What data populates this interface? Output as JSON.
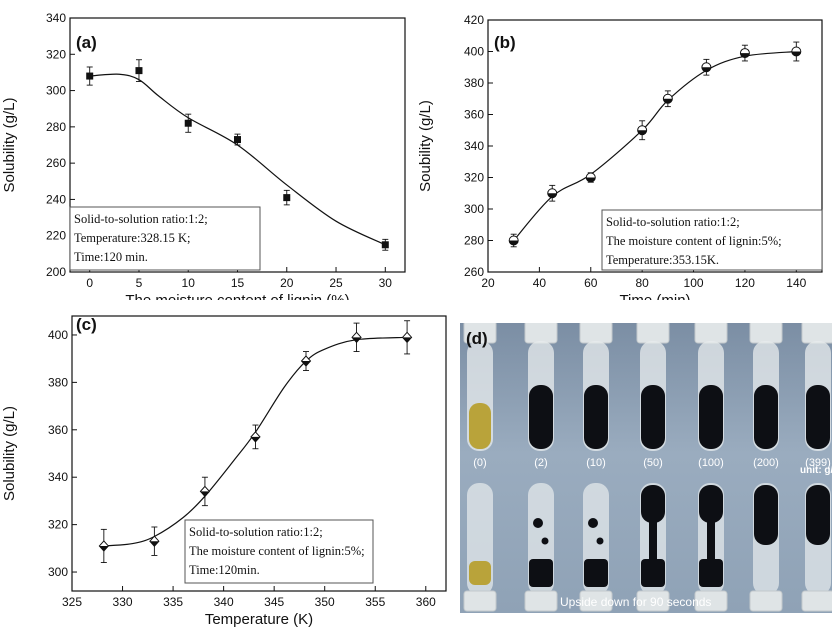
{
  "panels": {
    "a": {
      "label": "(a)",
      "xlabel": "The moisture content of lignin (%)",
      "ylabel": "Solubility (g/L)",
      "xlim": [
        -2,
        32
      ],
      "ylim": [
        200,
        340
      ],
      "xticks": [
        0,
        5,
        10,
        15,
        20,
        25,
        30
      ],
      "yticks": [
        200,
        220,
        240,
        260,
        280,
        300,
        320,
        340
      ],
      "annotation": [
        "Solid-to-solution ratio:1:2;",
        "Temperature:328.15 K;",
        "Time:120 min."
      ]
    },
    "b": {
      "label": "(b)",
      "xlabel": "Time (min)",
      "ylabel": "Soubility (g/L)",
      "xlim": [
        20,
        150
      ],
      "ylim": [
        260,
        420
      ],
      "xticks": [
        20,
        40,
        60,
        80,
        100,
        120,
        140
      ],
      "yticks": [
        260,
        280,
        300,
        320,
        340,
        360,
        380,
        400,
        420
      ],
      "annotation": [
        "Solid-to-solution ratio:1:2;",
        "The moisture content of lignin:5%;",
        "Temperature:353.15K."
      ]
    },
    "c": {
      "label": "(c)",
      "xlabel": "Temperature (K)",
      "ylabel": "Solubility (g/L)",
      "xlim": [
        325,
        362
      ],
      "ylim": [
        292,
        408
      ],
      "xticks": [
        325,
        330,
        335,
        340,
        345,
        350,
        355,
        360
      ],
      "yticks": [
        300,
        320,
        340,
        360,
        380,
        400
      ],
      "annotation": [
        "Solid-to-solution ratio:1:2;",
        "The moisture content of lignin:5%;",
        "Time:120min."
      ]
    },
    "d": {
      "label": "(d)",
      "concentrations": [
        "(0)",
        "(2)",
        "(10)",
        "(50)",
        "(100)",
        "(200)",
        "(399)"
      ],
      "unit": "unit: g/",
      "caption": "Upside down for 90 seconds"
    }
  },
  "chart_data": [
    {
      "type": "scatter",
      "title": "(a)",
      "xlabel": "The moisture content of lignin (%)",
      "ylabel": "Solubility (g/L)",
      "x": [
        0,
        5,
        10,
        15,
        20,
        30
      ],
      "y": [
        308,
        311,
        282,
        273,
        241,
        215
      ],
      "yerr": [
        5,
        6,
        5,
        3,
        4,
        3
      ],
      "curve": [
        [
          0,
          308
        ],
        [
          3,
          309
        ],
        [
          5,
          306
        ],
        [
          7,
          297
        ],
        [
          10,
          285
        ],
        [
          15,
          270
        ],
        [
          20,
          248
        ],
        [
          25,
          228
        ],
        [
          30,
          215
        ]
      ],
      "marker": "square",
      "xlim": [
        -2,
        32
      ],
      "ylim": [
        200,
        340
      ]
    },
    {
      "type": "scatter",
      "title": "(b)",
      "xlabel": "Time (min)",
      "ylabel": "Soubility (g/L)",
      "x": [
        30,
        45,
        60,
        80,
        90,
        105,
        120,
        140
      ],
      "y": [
        280,
        310,
        320,
        350,
        370,
        390,
        399,
        400
      ],
      "yerr": [
        4,
        5,
        3,
        6,
        5,
        5,
        5,
        6
      ],
      "curve": [
        [
          30,
          280
        ],
        [
          45,
          308
        ],
        [
          60,
          322
        ],
        [
          80,
          350
        ],
        [
          90,
          369
        ],
        [
          105,
          388
        ],
        [
          120,
          397
        ],
        [
          140,
          400
        ]
      ],
      "marker": "half-circle",
      "xlim": [
        20,
        150
      ],
      "ylim": [
        260,
        420
      ]
    },
    {
      "type": "scatter",
      "title": "(c)",
      "xlabel": "Temperature (K)",
      "ylabel": "Solubility (g/L)",
      "x": [
        328.15,
        333.15,
        338.15,
        343.15,
        348.15,
        353.15,
        358.15
      ],
      "y": [
        311,
        313,
        334,
        357,
        389,
        399,
        399
      ],
      "yerr": [
        7,
        6,
        6,
        5,
        4,
        6,
        7
      ],
      "curve": [
        [
          328.15,
          311
        ],
        [
          331,
          312
        ],
        [
          333.15,
          315
        ],
        [
          336,
          323
        ],
        [
          338.15,
          332
        ],
        [
          341,
          347
        ],
        [
          343.15,
          359
        ],
        [
          346,
          378
        ],
        [
          348.15,
          389
        ],
        [
          350,
          394
        ],
        [
          353.15,
          398
        ],
        [
          358.15,
          399
        ]
      ],
      "marker": "diamond",
      "xlim": [
        325,
        362
      ],
      "ylim": [
        292,
        408
      ]
    }
  ],
  "colors": {
    "ink": "#111111",
    "gel": "#0d0f14",
    "yellow_solution": "#b9a33a",
    "tube": "#e8ecee"
  }
}
